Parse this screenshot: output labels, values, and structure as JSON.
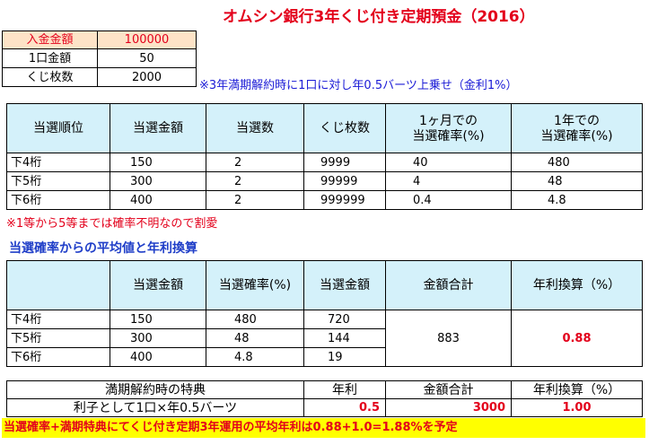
{
  "title": "オムシン銀行3年くじ付き定期預金（2016）",
  "summary": {
    "rows": [
      {
        "label": "入金金額",
        "value": "100000"
      },
      {
        "label": "1口金額",
        "value": "50"
      },
      {
        "label": "くじ枚数",
        "value": "2000"
      }
    ],
    "note": "※3年満期解約時に1口に対し年0.5バーツ上乗せ（金利1%）"
  },
  "prize_table": {
    "headers": [
      "当選順位",
      "当選金額",
      "当選数",
      "くじ枚数",
      "1ヶ月での",
      "当選確率(%)",
      "1年での",
      "当選確率(%)"
    ],
    "rows": [
      [
        "下4桁",
        "150",
        "2",
        "9999",
        "40",
        "480"
      ],
      [
        "下5桁",
        "300",
        "2",
        "99999",
        "4",
        "48"
      ],
      [
        "下6桁",
        "400",
        "2",
        "999999",
        "0.4",
        "4.8"
      ]
    ],
    "footnote": "※1等から5等までは確率不明なので割愛"
  },
  "average": {
    "section_title": "当選確率からの平均値と年利換算",
    "headers": [
      "当選金額",
      "当選確率(%)",
      "当選金額",
      "金額合計",
      "年利換算（%）"
    ],
    "rows": [
      [
        "下4桁",
        "150",
        "480",
        "720"
      ],
      [
        "下5桁",
        "300",
        "48",
        "144"
      ],
      [
        "下6桁",
        "400",
        "4.8",
        "19"
      ]
    ],
    "total": "883",
    "annual_rate": "0.88"
  },
  "maturity": {
    "headers": [
      "満期解約時の特典",
      "年利",
      "金額合計",
      "年利換算（%）"
    ],
    "row": {
      "label": "利子として1口×年0.5バーツ",
      "rate": "0.5",
      "total": "3000",
      "annual": "1.00"
    }
  },
  "conclusion": "当選確率+満期特典にてくじ付き定期3年運用の平均年利は0.88+1.0=1.88%を予定"
}
